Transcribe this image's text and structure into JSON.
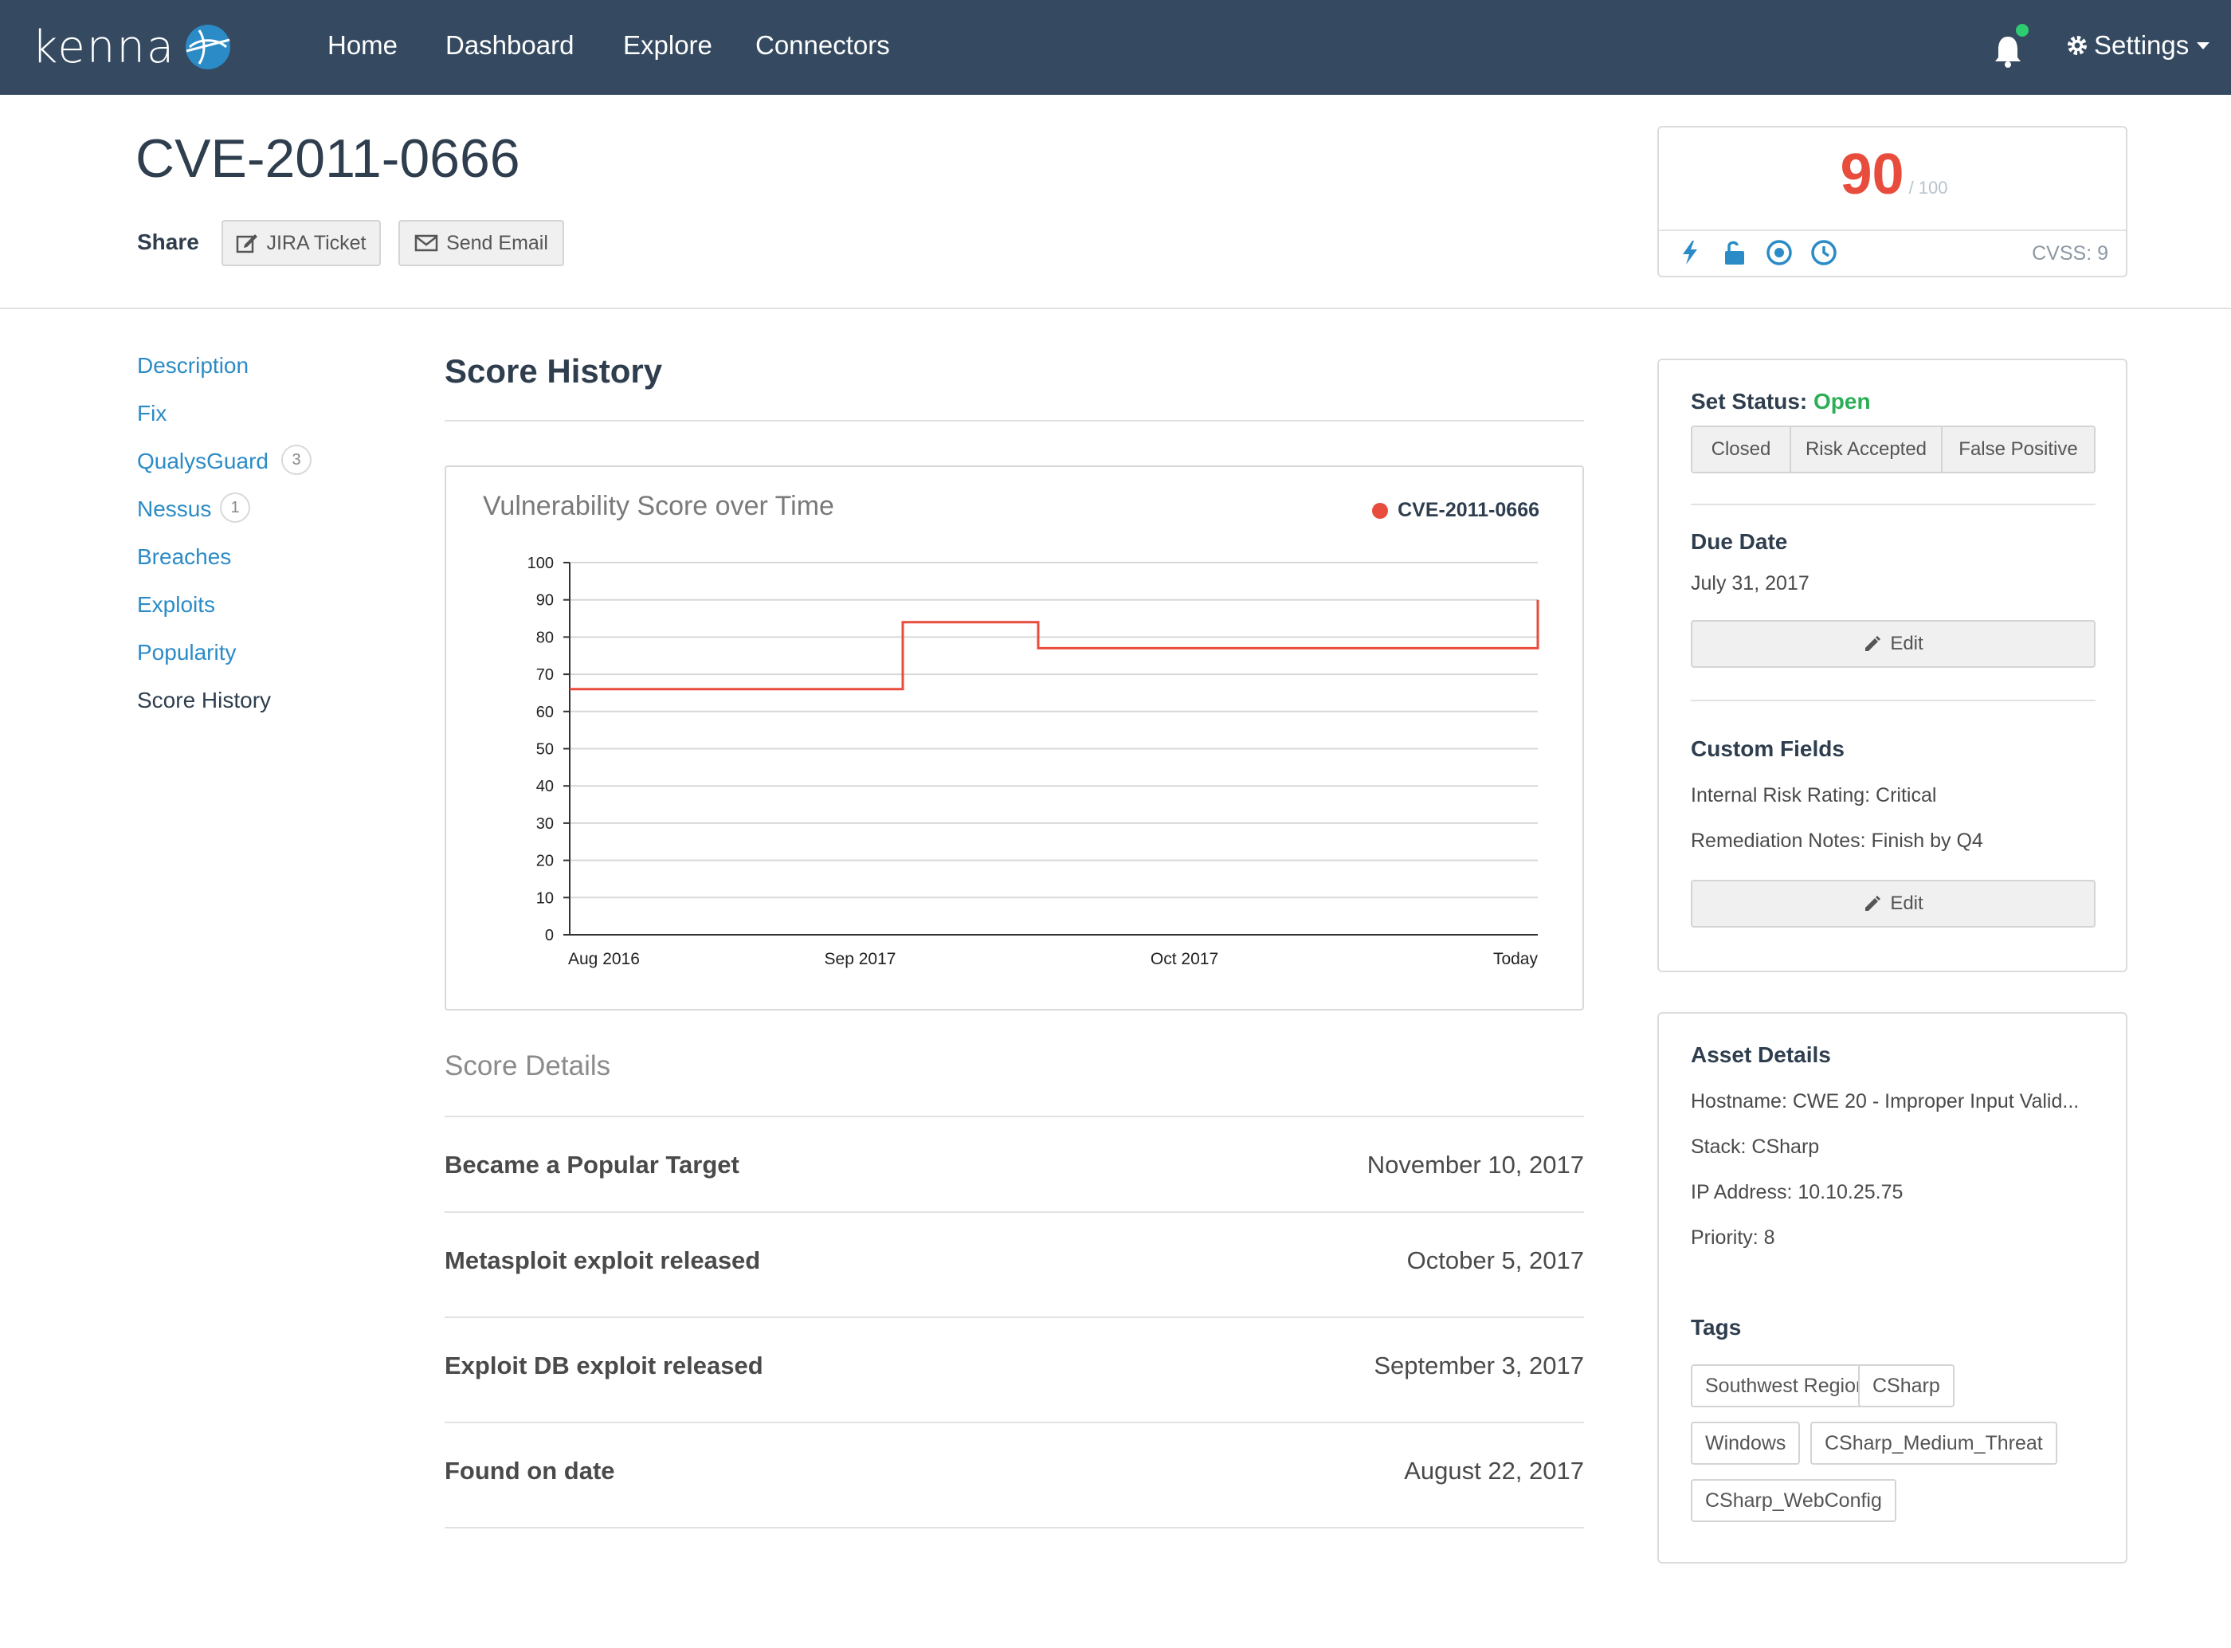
{
  "navbar": {
    "logo_text": "kenna",
    "links": [
      "Home",
      "Dashboard",
      "Explore",
      "Connectors"
    ],
    "settings_label": "Settings",
    "notification_dot_color": "#2ecc71",
    "background": "#354a61"
  },
  "header": {
    "title": "CVE-2011-0666",
    "share_label": "Share",
    "jira_button": "JIRA Ticket",
    "email_button": "Send Email"
  },
  "score_card": {
    "score": "90",
    "out_of": "/ 100",
    "cvss": "CVSS: 9",
    "icons": [
      "lightning-icon",
      "unlock-icon",
      "target-icon",
      "clock-icon"
    ]
  },
  "sidebar": {
    "items": [
      {
        "label": "Description",
        "badge": ""
      },
      {
        "label": "Fix",
        "badge": ""
      },
      {
        "label": "QualysGuard",
        "badge": "3"
      },
      {
        "label": "Nessus",
        "badge": "1"
      },
      {
        "label": "Breaches",
        "badge": ""
      },
      {
        "label": "Exploits",
        "badge": ""
      },
      {
        "label": "Popularity",
        "badge": ""
      },
      {
        "label": "Score History",
        "badge": ""
      }
    ]
  },
  "main": {
    "section_title": "Score History",
    "score_details_title": "Score Details",
    "details": [
      {
        "label": "Became a Popular Target",
        "date": "November 10, 2017"
      },
      {
        "label": "Metasploit exploit released",
        "date": "October 5, 2017"
      },
      {
        "label": "Exploit DB exploit released",
        "date": "September 3, 2017"
      },
      {
        "label": "Found on date",
        "date": "August 22, 2017"
      }
    ]
  },
  "chart_data": {
    "type": "line",
    "title": "Vulnerability Score over Time",
    "xlabel": "",
    "ylabel": "",
    "ylim": [
      0,
      100
    ],
    "y_ticks": [
      0,
      10,
      20,
      30,
      40,
      50,
      60,
      70,
      80,
      90,
      100
    ],
    "x_ticks": [
      "Aug 2016",
      "Sep 2017",
      "Oct 2017",
      "Today"
    ],
    "step": true,
    "grid": true,
    "legend_position": "top-right",
    "series": [
      {
        "name": "CVE-2011-0666",
        "color": "#e74c3c",
        "points": [
          {
            "x": "Aug 2016",
            "y": 66
          },
          {
            "x": "Aug 2017",
            "y": 66
          },
          {
            "x": "Aug 2017",
            "y": 84
          },
          {
            "x": "Sep 2017",
            "y": 84
          },
          {
            "x": "Sep 2017",
            "y": 77
          },
          {
            "x": "Today",
            "y": 77
          },
          {
            "x": "Today",
            "y": 90
          }
        ]
      }
    ]
  },
  "status_panel": {
    "set_status_label": "Set Status:",
    "status_value": "Open",
    "status_color": "#2cae57",
    "options": [
      "Closed",
      "Risk Accepted",
      "False Positive"
    ],
    "due_date_heading": "Due Date",
    "due_date": "July 31, 2017",
    "edit_label": "Edit",
    "custom_fields_heading": "Custom Fields",
    "custom_fields": [
      "Internal Risk Rating: Critical",
      "Remediation Notes: Finish by Q4"
    ]
  },
  "asset_panel": {
    "heading": "Asset Details",
    "details": [
      "Hostname: CWE 20 - Improper Input Valid...",
      "Stack: CSharp",
      "IP Address: 10.10.25.75",
      "Priority: 8"
    ],
    "tags_heading": "Tags",
    "tags": [
      "Southwest Region",
      "CSharp",
      "Windows",
      "CSharp_Medium_Threat",
      "CSharp_WebConfig"
    ]
  }
}
